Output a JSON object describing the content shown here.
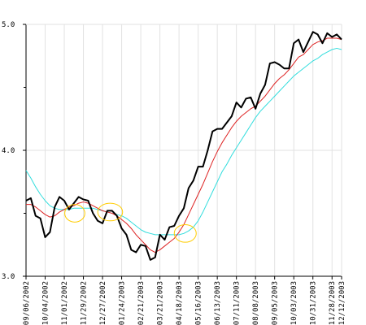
{
  "chart_data": {
    "type": "line",
    "title": "",
    "xlabel": "",
    "ylabel": "",
    "ylim": [
      3.0,
      5.0
    ],
    "y_ticks": [
      {
        "value": 3.0,
        "label": "3.0"
      },
      {
        "value": 4.0,
        "label": "4.0"
      },
      {
        "value": 5.0,
        "label": "5.0"
      }
    ],
    "y_minor_ticks": [
      3.5,
      4.5
    ],
    "x_tick_labels": [
      "09/06/2002",
      "10/04/2002",
      "11/01/2002",
      "11/29/2002",
      "12/27/2002",
      "01/24/2003",
      "02/21/2003",
      "03/21/2003",
      "04/18/2003",
      "05/16/2003",
      "06/13/2003",
      "07/11/2003",
      "08/08/2003",
      "09/05/2003",
      "10/03/2003",
      "10/31/2003",
      "11/28/2003",
      "12/12/2003"
    ],
    "x_tick_indices": [
      0,
      4,
      8,
      12,
      16,
      20,
      24,
      28,
      32,
      36,
      40,
      44,
      48,
      52,
      56,
      60,
      64,
      66
    ],
    "x_count": 67,
    "grid": true,
    "legend": "none",
    "colors": {
      "price": "#000000",
      "ma_short": "#dd2222",
      "ma_long": "#33dddd",
      "highlight": "#ffcc00"
    },
    "series": [
      {
        "key": "price",
        "values": [
          3.6,
          3.62,
          3.48,
          3.46,
          3.31,
          3.35,
          3.55,
          3.63,
          3.6,
          3.53,
          3.58,
          3.63,
          3.61,
          3.6,
          3.5,
          3.44,
          3.42,
          3.52,
          3.52,
          3.48,
          3.38,
          3.33,
          3.21,
          3.19,
          3.25,
          3.24,
          3.13,
          3.15,
          3.33,
          3.29,
          3.39,
          3.4,
          3.48,
          3.54,
          3.7,
          3.76,
          3.87,
          3.87,
          4.0,
          4.15,
          4.17,
          4.17,
          4.22,
          4.27,
          4.38,
          4.34,
          4.41,
          4.42,
          4.33,
          4.45,
          4.52,
          4.69,
          4.7,
          4.68,
          4.65,
          4.65,
          4.85,
          4.88,
          4.78,
          4.86,
          4.94,
          4.92,
          4.85,
          4.93,
          4.9,
          4.92,
          4.88
        ]
      },
      {
        "key": "ma_short",
        "values": [
          3.57,
          3.57,
          3.55,
          3.52,
          3.49,
          3.47,
          3.48,
          3.51,
          3.53,
          3.55,
          3.56,
          3.58,
          3.59,
          3.58,
          3.56,
          3.54,
          3.52,
          3.51,
          3.5,
          3.48,
          3.45,
          3.42,
          3.38,
          3.33,
          3.29,
          3.25,
          3.21,
          3.19,
          3.21,
          3.24,
          3.27,
          3.3,
          3.35,
          3.41,
          3.49,
          3.57,
          3.65,
          3.73,
          3.82,
          3.91,
          3.99,
          4.06,
          4.12,
          4.18,
          4.23,
          4.27,
          4.3,
          4.33,
          4.35,
          4.39,
          4.43,
          4.48,
          4.53,
          4.57,
          4.6,
          4.64,
          4.69,
          4.74,
          4.76,
          4.8,
          4.84,
          4.86,
          4.87,
          4.89,
          4.89,
          4.89,
          4.88
        ]
      },
      {
        "key": "ma_long",
        "values": [
          3.84,
          3.78,
          3.71,
          3.65,
          3.6,
          3.56,
          3.54,
          3.53,
          3.53,
          3.53,
          3.54,
          3.54,
          3.54,
          3.54,
          3.54,
          3.53,
          3.52,
          3.51,
          3.5,
          3.49,
          3.48,
          3.46,
          3.43,
          3.4,
          3.37,
          3.35,
          3.34,
          3.33,
          3.33,
          3.33,
          3.33,
          3.33,
          3.33,
          3.34,
          3.36,
          3.39,
          3.44,
          3.51,
          3.59,
          3.67,
          3.75,
          3.83,
          3.89,
          3.96,
          4.02,
          4.08,
          4.14,
          4.2,
          4.26,
          4.31,
          4.35,
          4.39,
          4.43,
          4.47,
          4.51,
          4.55,
          4.59,
          4.62,
          4.65,
          4.68,
          4.71,
          4.73,
          4.76,
          4.78,
          4.8,
          4.81,
          4.8
        ]
      }
    ],
    "annotations": [
      {
        "type": "ellipse",
        "x_index": 10.2,
        "y": 3.5,
        "rx_index": 2.1,
        "ry": 0.07
      },
      {
        "type": "ellipse",
        "x_index": 17.6,
        "y": 3.51,
        "rx_index": 2.6,
        "ry": 0.07
      },
      {
        "type": "ellipse",
        "x_index": 33.3,
        "y": 3.34,
        "rx_index": 2.3,
        "ry": 0.07
      }
    ]
  }
}
